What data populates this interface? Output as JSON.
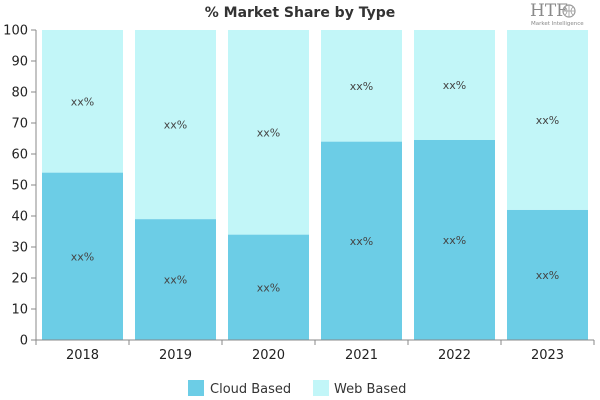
{
  "logo": {
    "text": "HTF",
    "subtitle": "Market Intelligence"
  },
  "chart_data": {
    "type": "bar",
    "stacked": true,
    "title": "% Market Share by Type",
    "xlabel": "",
    "ylabel": "",
    "categories": [
      "2018",
      "2019",
      "2020",
      "2021",
      "2022",
      "2023"
    ],
    "series": [
      {
        "name": "Cloud Based",
        "color": "#6ccde6",
        "values": [
          54,
          39,
          34,
          64,
          64.5,
          42
        ],
        "labels": [
          "xx%",
          "xx%",
          "xx%",
          "xx%",
          "xx%",
          "xx%"
        ]
      },
      {
        "name": "Web Based",
        "color": "#c2f6f8",
        "values": [
          46,
          61,
          66,
          36,
          35.5,
          58
        ],
        "labels": [
          "xx%",
          "xx%",
          "xx%",
          "xx%",
          "xx%",
          "xx%"
        ]
      }
    ],
    "ylim": [
      0,
      100
    ],
    "yticks": [
      "0",
      "10",
      "20",
      "30",
      "40",
      "50",
      "60",
      "70",
      "80",
      "90",
      "100"
    ],
    "grid": false,
    "legend_position": "bottom"
  }
}
